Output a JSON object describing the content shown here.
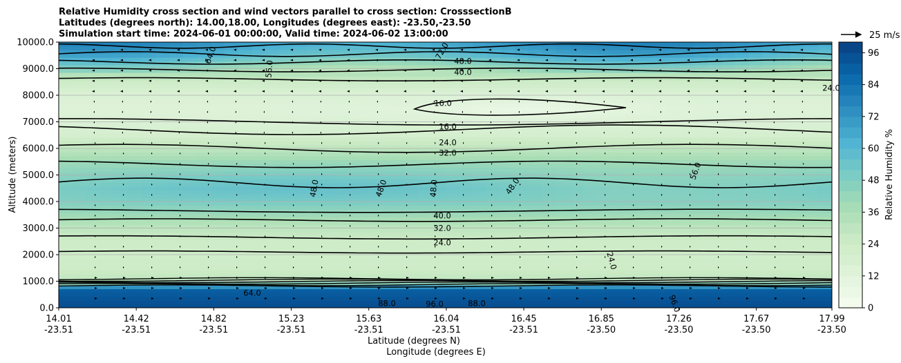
{
  "chart_data": {
    "type": "heatmap",
    "title_lines": [
      "Relative Humidity cross section and wind vectors parallel to cross section: CrosssectionB",
      "Latitudes (degrees north): 14.00,18.00, Longitudes (degrees east): -23.50,-23.50",
      "Simulation start time: 2024-06-01 00:00:00, Valid time: 2024-06-02 13:00:00"
    ],
    "ylabel": "Altitude (meters)",
    "xlabel_lat": "Latitude (degrees N)",
    "xlabel_lon": "Longitude (degrees E)",
    "ylim": [
      0,
      10000
    ],
    "yticks": [
      "0.0",
      "1000.0",
      "2000.0",
      "3000.0",
      "4000.0",
      "5000.0",
      "6000.0",
      "7000.0",
      "8000.0",
      "9000.0",
      "10000.0"
    ],
    "xticks": [
      {
        "lat": "14.01",
        "lon": "-23.51"
      },
      {
        "lat": "14.42",
        "lon": "-23.51"
      },
      {
        "lat": "14.82",
        "lon": "-23.51"
      },
      {
        "lat": "15.23",
        "lon": "-23.51"
      },
      {
        "lat": "15.63",
        "lon": "-23.51"
      },
      {
        "lat": "16.04",
        "lon": "-23.51"
      },
      {
        "lat": "16.45",
        "lon": "-23.51"
      },
      {
        "lat": "16.85",
        "lon": "-23.50"
      },
      {
        "lat": "17.26",
        "lon": "-23.50"
      },
      {
        "lat": "17.67",
        "lon": "-23.50"
      },
      {
        "lat": "17.99",
        "lon": "-23.50"
      }
    ],
    "colorbar": {
      "label": "Relative Humidity %",
      "ticks": [
        "0",
        "12",
        "24",
        "36",
        "48",
        "60",
        "72",
        "84",
        "96"
      ],
      "min": 0,
      "max": 100,
      "step": 4
    },
    "quiver_key": "25 m/s",
    "humidity_profile": {
      "altitude_m": [
        0,
        300,
        700,
        1000,
        1500,
        2000,
        2500,
        3000,
        3500,
        4000,
        4500,
        5000,
        5500,
        6000,
        6500,
        7000,
        7500,
        8000,
        8500,
        9000,
        9500,
        10000
      ],
      "rh_percent": [
        96,
        94,
        90,
        30,
        24,
        22,
        24,
        30,
        40,
        48,
        50,
        46,
        40,
        30,
        20,
        16,
        14,
        16,
        24,
        40,
        60,
        72
      ]
    },
    "contour_labels": [
      {
        "text": "16.0"
      },
      {
        "text": "16.0"
      },
      {
        "text": "24.0"
      },
      {
        "text": "32.0"
      },
      {
        "text": "40.0"
      },
      {
        "text": "32.0"
      },
      {
        "text": "24.0"
      },
      {
        "text": "24.0"
      },
      {
        "text": "48.0"
      },
      {
        "text": "48.0"
      },
      {
        "text": "48.0"
      },
      {
        "text": "48.0"
      },
      {
        "text": "56.0"
      },
      {
        "text": "24.0"
      },
      {
        "text": "40.0"
      },
      {
        "text": "48.0"
      },
      {
        "text": "56.0"
      },
      {
        "text": "64.0"
      },
      {
        "text": "72.0"
      },
      {
        "text": "88.0"
      },
      {
        "text": "96.0"
      },
      {
        "text": "88.0"
      },
      {
        "text": "96.0"
      },
      {
        "text": "64.0"
      }
    ],
    "colors": {
      "cmap": [
        "#f7fcf0",
        "#e0f3db",
        "#ccebc5",
        "#a8ddb5",
        "#7bccc4",
        "#4eb3d3",
        "#2b8cbe",
        "#0868ac",
        "#084081"
      ],
      "contour": "#000000",
      "grid": "#b0b0b0"
    }
  }
}
